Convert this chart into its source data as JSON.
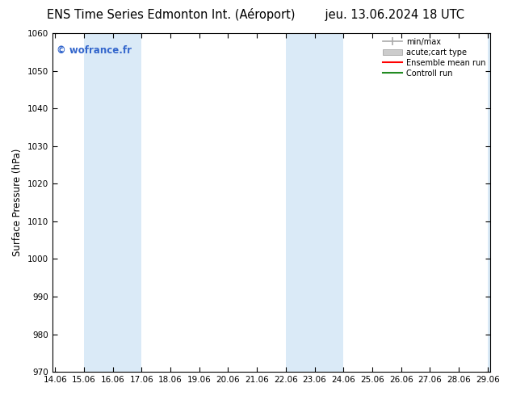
{
  "title_left": "ENS Time Series Edmonton Int. (Aéroport)",
  "title_right": "jeu. 13.06.2024 18 UTC",
  "ylabel": "Surface Pressure (hPa)",
  "ylim": [
    970,
    1060
  ],
  "yticks": [
    970,
    980,
    990,
    1000,
    1010,
    1020,
    1030,
    1040,
    1050,
    1060
  ],
  "xticks": [
    14.06,
    15.06,
    16.06,
    17.06,
    18.06,
    19.06,
    20.06,
    21.06,
    22.06,
    23.06,
    24.06,
    25.06,
    26.06,
    27.06,
    28.06,
    29.06
  ],
  "xtick_labels": [
    "14.06",
    "15.06",
    "16.06",
    "17.06",
    "18.06",
    "19.06",
    "20.06",
    "21.06",
    "22.06",
    "23.06",
    "24.06",
    "25.06",
    "26.06",
    "27.06",
    "28.06",
    "29.06"
  ],
  "xlim_start": 13.96,
  "xlim_end": 29.16,
  "shaded_bands": [
    {
      "xmin": 15.06,
      "xmax": 17.06
    },
    {
      "xmin": 22.06,
      "xmax": 24.06
    },
    {
      "xmin": 29.06,
      "xmax": 29.5
    }
  ],
  "shaded_color": "#daeaf7",
  "watermark": "© wofrance.fr",
  "watermark_color": "#3366cc",
  "legend_labels": [
    "min/max",
    "acute;cart type",
    "Ensemble mean run",
    "Controll run"
  ],
  "bg_color": "#ffffff",
  "title_fontsize": 10.5,
  "axis_fontsize": 8.5,
  "tick_fontsize": 7.5
}
